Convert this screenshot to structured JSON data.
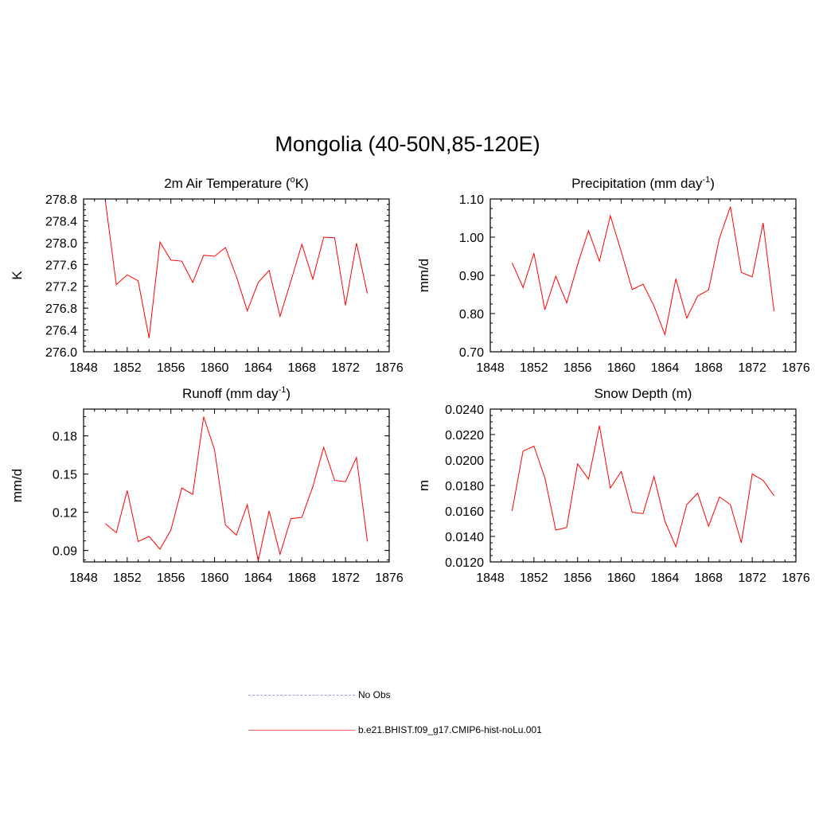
{
  "title": "Mongolia (40-50N,85-120E)",
  "colors": {
    "model_line": "#ff0000",
    "obs_line": "#9999ff"
  },
  "legend": {
    "obs_label": "No Obs",
    "model_label": "b.e21.BHIST.f09_g17.CMIP6-hist-noLu.001"
  },
  "chart_data": [
    {
      "type": "line",
      "title": "2m Air Temperature (",
      "title_super": "o",
      "title_suffix": "K)",
      "ylabel": "K",
      "xlim": [
        1848,
        1876
      ],
      "xticks": [
        "1848",
        "1852",
        "1856",
        "1860",
        "1864",
        "1868",
        "1872",
        "1876"
      ],
      "ylim": [
        276.0,
        278.8
      ],
      "yticks": [
        "276.0",
        "276.4",
        "276.8",
        "277.2",
        "277.6",
        "278.0",
        "278.4",
        "278.8"
      ],
      "series": [
        {
          "x": [
            1850,
            1851,
            1852,
            1853,
            1854,
            1855,
            1856,
            1857,
            1858,
            1859,
            1860,
            1861,
            1862,
            1863,
            1864,
            1865,
            1866,
            1867,
            1868,
            1869,
            1870,
            1871,
            1872,
            1873,
            1874
          ],
          "values": [
            278.76,
            277.23,
            277.41,
            277.3,
            276.25,
            278.01,
            277.68,
            277.66,
            277.27,
            277.77,
            277.75,
            277.91,
            277.38,
            276.75,
            277.27,
            277.49,
            276.65,
            277.3,
            277.97,
            277.33,
            278.1,
            278.09,
            276.85,
            277.99,
            277.07
          ]
        }
      ]
    },
    {
      "type": "line",
      "title": "Precipitation (mm day",
      "title_super": "-1",
      "title_suffix": ")",
      "ylabel": "mm/d",
      "xlim": [
        1848,
        1876
      ],
      "xticks": [
        "1848",
        "1852",
        "1856",
        "1860",
        "1864",
        "1868",
        "1872",
        "1876"
      ],
      "ylim": [
        0.7,
        1.1
      ],
      "yticks": [
        "0.70",
        "0.80",
        "0.90",
        "1.00",
        "1.10"
      ],
      "series": [
        {
          "x": [
            1850,
            1851,
            1852,
            1853,
            1854,
            1855,
            1856,
            1857,
            1858,
            1859,
            1860,
            1861,
            1862,
            1863,
            1864,
            1865,
            1866,
            1867,
            1868,
            1869,
            1870,
            1871,
            1872,
            1873,
            1874
          ],
          "values": [
            0.933,
            0.868,
            0.958,
            0.81,
            0.898,
            0.828,
            0.928,
            1.017,
            0.937,
            1.056,
            0.962,
            0.863,
            0.877,
            0.82,
            0.745,
            0.891,
            0.788,
            0.846,
            0.862,
            0.998,
            1.08,
            0.908,
            0.896,
            1.037,
            0.806
          ]
        }
      ]
    },
    {
      "type": "line",
      "title": "Runoff (mm day",
      "title_super": "-1",
      "title_suffix": ")",
      "ylabel": "mm/d",
      "xlim": [
        1848,
        1876
      ],
      "xticks": [
        "1848",
        "1852",
        "1856",
        "1860",
        "1864",
        "1868",
        "1872",
        "1876"
      ],
      "ylim": [
        0.081,
        0.201
      ],
      "yticks": [
        "0.09",
        "0.12",
        "0.15",
        "0.18"
      ],
      "ytick_values": [
        0.09,
        0.12,
        0.15,
        0.18
      ],
      "series": [
        {
          "x": [
            1850,
            1851,
            1852,
            1853,
            1854,
            1855,
            1856,
            1857,
            1858,
            1859,
            1860,
            1861,
            1862,
            1863,
            1864,
            1865,
            1866,
            1867,
            1868,
            1869,
            1870,
            1871,
            1872,
            1873,
            1874
          ],
          "values": [
            0.111,
            0.104,
            0.137,
            0.097,
            0.101,
            0.091,
            0.106,
            0.139,
            0.134,
            0.195,
            0.169,
            0.11,
            0.102,
            0.126,
            0.082,
            0.121,
            0.087,
            0.115,
            0.116,
            0.14,
            0.171,
            0.145,
            0.144,
            0.163,
            0.097
          ]
        }
      ]
    },
    {
      "type": "line",
      "title": "Snow Depth (m)",
      "title_super": "",
      "title_suffix": "",
      "ylabel": "m",
      "xlim": [
        1848,
        1876
      ],
      "xticks": [
        "1848",
        "1852",
        "1856",
        "1860",
        "1864",
        "1868",
        "1872",
        "1876"
      ],
      "ylim": [
        0.012,
        0.024
      ],
      "yticks": [
        "0.0120",
        "0.0140",
        "0.0160",
        "0.0180",
        "0.0200",
        "0.0220",
        "0.0240"
      ],
      "series": [
        {
          "x": [
            1850,
            1851,
            1852,
            1853,
            1854,
            1855,
            1856,
            1857,
            1858,
            1859,
            1860,
            1861,
            1862,
            1863,
            1864,
            1865,
            1866,
            1867,
            1868,
            1869,
            1870,
            1871,
            1872,
            1873,
            1874
          ],
          "values": [
            0.016,
            0.0207,
            0.0211,
            0.0186,
            0.0145,
            0.0147,
            0.0197,
            0.0185,
            0.0227,
            0.0178,
            0.0191,
            0.0159,
            0.0158,
            0.0187,
            0.0152,
            0.0132,
            0.0165,
            0.0174,
            0.0148,
            0.0171,
            0.0165,
            0.0135,
            0.0189,
            0.0184,
            0.0172
          ]
        }
      ]
    }
  ]
}
